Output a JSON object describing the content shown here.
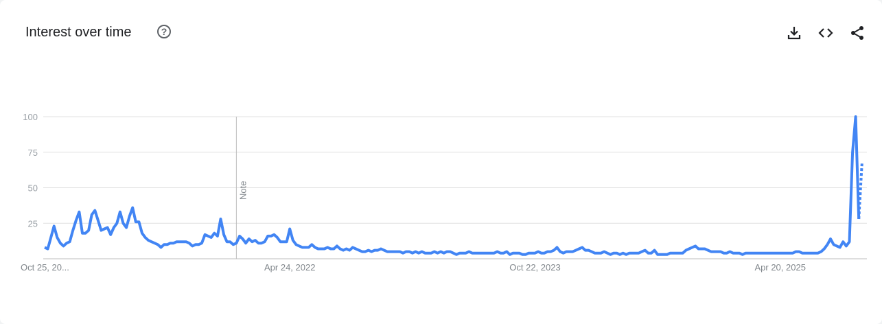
{
  "header": {
    "title": "Interest over time",
    "help_icon": "help-circle-icon"
  },
  "toolbar": {
    "icons": [
      "download-icon",
      "embed-code-icon",
      "share-icon"
    ]
  },
  "chart_data": {
    "type": "line",
    "x_start": "2020-10-25",
    "interval": "week",
    "ylim": [
      0,
      100
    ],
    "yticks": [
      "100",
      "75",
      "50",
      "25"
    ],
    "xtick_labels": [
      "Oct 25, 20...",
      "Apr 24, 2022",
      "Oct 22, 2023",
      "Apr 20, 2025"
    ],
    "grid": true,
    "line_color": "#4285f4",
    "annotation": {
      "label": "Note",
      "week": 61
    },
    "partial_last_point": true,
    "values": [
      8,
      7,
      15,
      23,
      15,
      11,
      9,
      11,
      12,
      20,
      27,
      33,
      18,
      18,
      20,
      31,
      34,
      27,
      20,
      21,
      22,
      17,
      22,
      25,
      33,
      25,
      22,
      30,
      36,
      26,
      26,
      18,
      15,
      13,
      12,
      11,
      10,
      8,
      10,
      10,
      11,
      11,
      12,
      12,
      12,
      12,
      11,
      9,
      10,
      10,
      11,
      17,
      16,
      15,
      18,
      16,
      28,
      17,
      12,
      12,
      10,
      11,
      16,
      14,
      11,
      14,
      12,
      13,
      11,
      11,
      12,
      16,
      16,
      17,
      15,
      12,
      12,
      12,
      21,
      13,
      10,
      9,
      8,
      8,
      8,
      10,
      8,
      7,
      7,
      7,
      8,
      7,
      7,
      9,
      7,
      6,
      7,
      6,
      8,
      7,
      6,
      5,
      5,
      6,
      5,
      6,
      6,
      7,
      6,
      5,
      5,
      5,
      5,
      5,
      4,
      5,
      5,
      4,
      5,
      4,
      5,
      4,
      4,
      4,
      5,
      4,
      5,
      4,
      5,
      5,
      4,
      3,
      4,
      4,
      4,
      5,
      4,
      4,
      4,
      4,
      4,
      4,
      4,
      4,
      5,
      4,
      4,
      5,
      3,
      4,
      4,
      4,
      3,
      3,
      4,
      4,
      4,
      5,
      4,
      4,
      5,
      5,
      6,
      8,
      5,
      4,
      5,
      5,
      5,
      6,
      7,
      8,
      6,
      6,
      5,
      4,
      4,
      4,
      5,
      4,
      3,
      4,
      4,
      3,
      4,
      3,
      4,
      4,
      4,
      4,
      5,
      6,
      4,
      4,
      6,
      3,
      3,
      3,
      3,
      4,
      4,
      4,
      4,
      4,
      6,
      7,
      8,
      9,
      7,
      7,
      7,
      6,
      5,
      5,
      5,
      5,
      4,
      4,
      5,
      4,
      4,
      4,
      3,
      4,
      4,
      4,
      4,
      4,
      4,
      4,
      4,
      4,
      4,
      4,
      4,
      4,
      4,
      4,
      4,
      5,
      5,
      4,
      4,
      4,
      4,
      4,
      4,
      5,
      7,
      10,
      14,
      10,
      9,
      8,
      12,
      9,
      12,
      75,
      100,
      28,
      67
    ]
  }
}
